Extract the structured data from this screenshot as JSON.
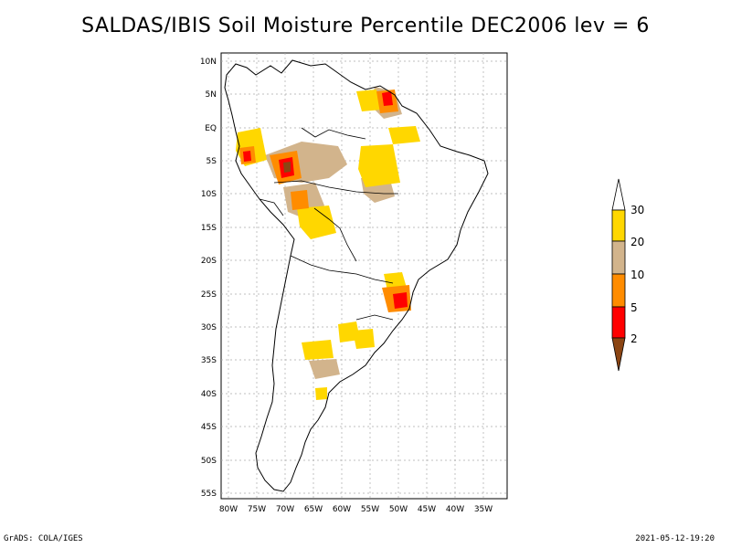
{
  "title": "SALDAS/IBIS Soil Moisture Percentile DEC2006 lev = 6",
  "footer": {
    "left": "GrADS: COLA/IGES",
    "right": "2021-05-12-19:20"
  },
  "axes": {
    "lat_labels": [
      "10N",
      "5N",
      "EQ",
      "5S",
      "10S",
      "15S",
      "20S",
      "25S",
      "30S",
      "35S",
      "40S",
      "45S",
      "50S",
      "55S"
    ],
    "lon_labels": [
      "80W",
      "75W",
      "70W",
      "65W",
      "60W",
      "55W",
      "50W",
      "45W",
      "40W",
      "35W"
    ]
  },
  "colorbar": {
    "labels": [
      "30",
      "20",
      "10",
      "5",
      "2"
    ],
    "colors": {
      "above_30": "#ffffff",
      "20_30": "#ffd700",
      "10_20": "#d2b48c",
      "5_10": "#ff8c00",
      "2_5": "#ff0000",
      "below_2": "#8b4513"
    }
  },
  "colors": {
    "coast": "#000000",
    "grid": "#aaaaaa"
  }
}
